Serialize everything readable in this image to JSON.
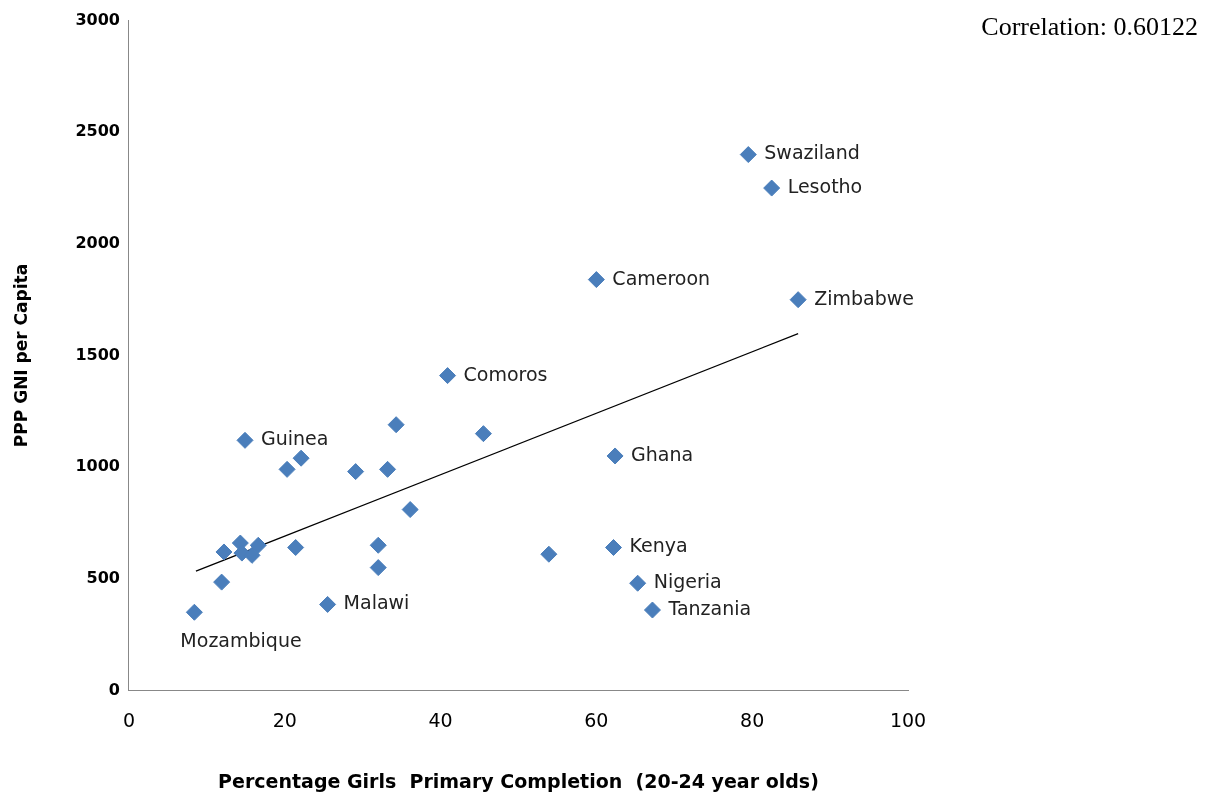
{
  "chart_data": {
    "type": "scatter",
    "xlabel": "Percentage Girls  Primary Completion  (20-24 year olds)",
    "ylabel": "PPP GNI per Capita",
    "xlim": [
      0,
      100
    ],
    "xticks": [
      0,
      20,
      40,
      60,
      80,
      100
    ],
    "ylim": [
      0,
      3000
    ],
    "yticks": [
      0,
      500,
      1000,
      1500,
      2000,
      2500,
      3000
    ],
    "grid": false,
    "legend": false,
    "series": [
      {
        "color": "#4a7ebb",
        "marker": "diamond",
        "x": [
          8.4,
          11.9,
          12.2,
          14.3,
          14.5,
          15.8,
          16.6,
          14.9,
          20.3,
          22.1,
          21.4,
          25.5,
          29.1,
          33.2,
          34.3,
          32.0,
          32.0,
          36.1,
          40.9,
          45.5,
          53.9,
          60.0,
          62.4,
          62.2,
          65.3,
          67.2,
          79.5,
          82.5,
          85.9
        ],
        "values": [
          350,
          485,
          620,
          660,
          615,
          605,
          650,
          1120,
          990,
          1040,
          640,
          385,
          980,
          990,
          1190,
          650,
          550,
          810,
          1410,
          1150,
          610,
          1840,
          1050,
          640,
          480,
          360,
          2400,
          2250,
          1750
        ]
      },
      {
        "type": "line",
        "color": "#000000",
        "marker": "none",
        "x": [
          8.6,
          85.9
        ],
        "values": [
          534,
          1598
        ]
      }
    ],
    "annotations": [
      "Correlation: 0.60122",
      {
        "text": "Mozambique",
        "x": 8.4,
        "y": 350
      },
      {
        "text": "Guinea",
        "x": 14.9,
        "y": 1120
      },
      {
        "text": "Malawi",
        "x": 25.5,
        "y": 385
      },
      {
        "text": "Comoros",
        "x": 40.9,
        "y": 1410
      },
      {
        "text": "Cameroon",
        "x": 60.0,
        "y": 1840
      },
      {
        "text": "Ghana",
        "x": 62.4,
        "y": 1050
      },
      {
        "text": "Kenya",
        "x": 62.2,
        "y": 640
      },
      {
        "text": "Nigeria",
        "x": 65.3,
        "y": 480
      },
      {
        "text": "Tanzania",
        "x": 67.2,
        "y": 360
      },
      {
        "text": "Swaziland",
        "x": 79.5,
        "y": 2400
      },
      {
        "text": "Lesotho",
        "x": 82.5,
        "y": 2250
      },
      {
        "text": "Zimbabwe",
        "x": 85.9,
        "y": 1750
      }
    ]
  }
}
